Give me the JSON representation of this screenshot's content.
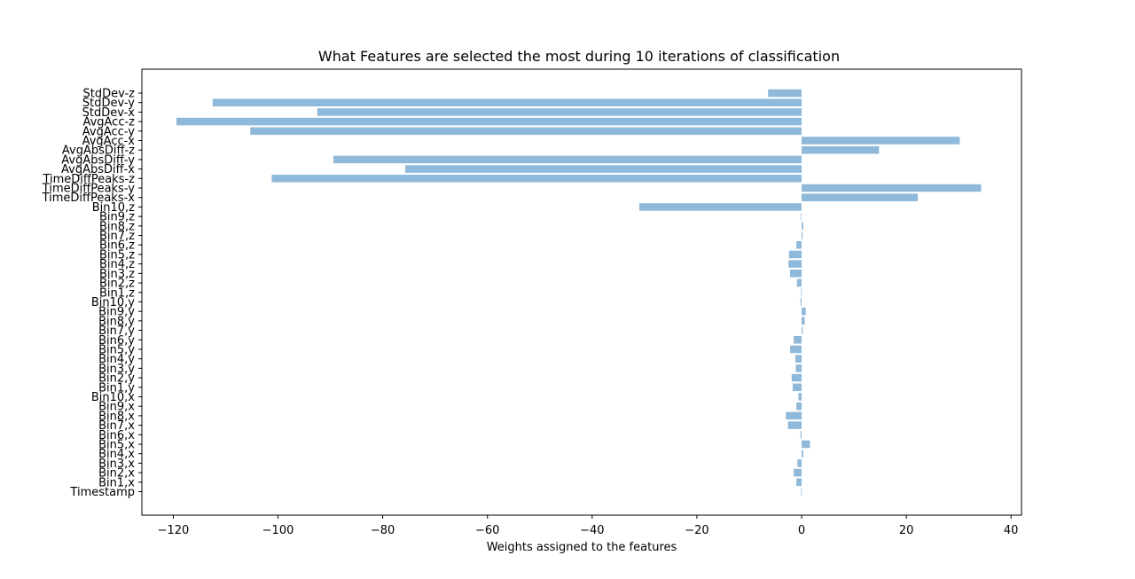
{
  "chart_data": {
    "type": "bar",
    "orientation": "horizontal",
    "title": "What Features are selected the most during 10 iterations of classification",
    "xlabel": "Weights assigned to the features",
    "ylabel": "",
    "xlim": [
      -126,
      42
    ],
    "xticks": [
      -120,
      -100,
      -80,
      -60,
      -40,
      -20,
      0,
      20,
      40
    ],
    "xtick_labels": [
      "−120",
      "−100",
      "−80",
      "−60",
      "−40",
      "−20",
      "0",
      "20",
      "40"
    ],
    "bar_color": "#8fb9da",
    "grid": false,
    "categories": [
      "Timestamp",
      "Bin1,x",
      "Bin2,x",
      "Bin3,x",
      "Bin4,x",
      "Bin5,x",
      "Bin6,x",
      "Bin7,x",
      "Bin8,x",
      "Bin9,x",
      "Bin10,x",
      "Bin1,y",
      "Bin2,y",
      "Bin3,y",
      "Bin4,y",
      "Bin5,y",
      "Bin6,y",
      "Bin7,y",
      "Bin8,y",
      "Bin9,y",
      "Bin10,y",
      "Bin1,z",
      "Bin2,z",
      "Bin3,z",
      "Bin4,z",
      "Bin5,z",
      "Bin6,z",
      "Bin7,z",
      "Bin8,z",
      "Bin9,z",
      "Bin10,z",
      "TimeDiffPeaks-x",
      "TimeDiffPeaks-y",
      "TimeDiffPeaks-z",
      "AvgAbsDiff-x",
      "AvgAbsDiff-y",
      "AvgAbsDiff-z",
      "AvgAcc-x",
      "AvgAcc-y",
      "AvgAcc-z",
      "StdDev-x",
      "StdDev-y",
      "StdDev-z"
    ],
    "values": [
      -0.1,
      -1.0,
      -1.5,
      -0.8,
      0.3,
      1.6,
      -0.2,
      -2.6,
      -3.0,
      -1.0,
      -0.6,
      -1.7,
      -1.9,
      -1.1,
      -1.2,
      -2.2,
      -1.5,
      0.2,
      0.6,
      0.8,
      -0.2,
      -0.1,
      -0.9,
      -2.2,
      -2.5,
      -2.4,
      -1.0,
      0.2,
      0.3,
      -0.1,
      -31.0,
      22.2,
      34.3,
      -101.2,
      -75.7,
      -89.4,
      14.8,
      30.2,
      -105.3,
      -119.4,
      -92.5,
      -112.5,
      -6.4
    ]
  }
}
